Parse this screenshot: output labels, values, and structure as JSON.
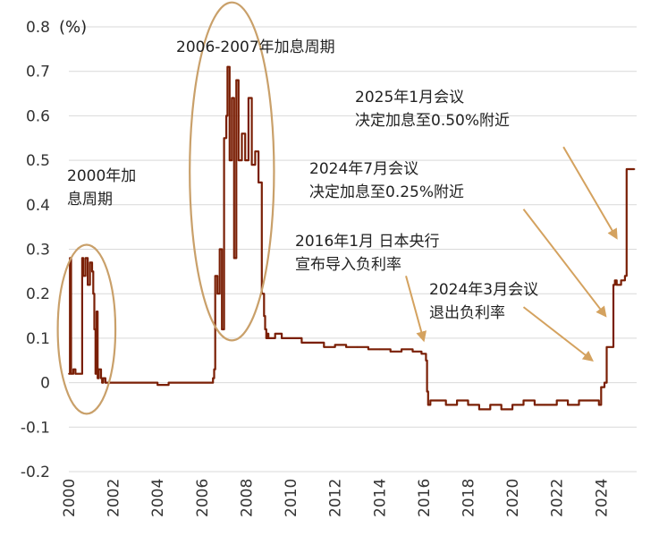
{
  "chart_data": {
    "type": "line",
    "title": "",
    "xlabel": "",
    "ylabel": "(%)",
    "xlim": [
      2000,
      2025.6
    ],
    "ylim": [
      -0.2,
      0.8
    ],
    "yticks": [
      "0.8",
      "0.7",
      "0.6",
      "0.5",
      "0.4",
      "0.3",
      "0.2",
      "0.1",
      "0",
      "-0.1",
      "-0.2"
    ],
    "xticks": [
      "2000",
      "2002",
      "2004",
      "2006",
      "2008",
      "2010",
      "2012",
      "2014",
      "2016",
      "2018",
      "2020",
      "2022",
      "2024"
    ],
    "grid": "horizontal",
    "series_color": "#7a1f05",
    "series": [
      {
        "x": [
          2000.0,
          2000.05,
          2000.1,
          2000.12,
          2000.2,
          2000.3,
          2000.5,
          2000.6,
          2000.65,
          2000.75,
          2000.85,
          2000.95,
          2001.05,
          2001.1,
          2001.15,
          2001.2,
          2001.25,
          2001.3,
          2001.35,
          2001.45,
          2001.5,
          2001.55,
          2001.65,
          2001.75,
          2002.0,
          2002.5,
          2003.0,
          2003.5,
          2004.0,
          2004.5,
          2005.0,
          2005.5,
          2006.0,
          2006.2,
          2006.3,
          2006.4,
          2006.5,
          2006.55,
          2006.6,
          2006.7,
          2006.8,
          2006.9,
          2007.0,
          2007.1,
          2007.15,
          2007.25,
          2007.35,
          2007.45,
          2007.55,
          2007.65,
          2007.8,
          2007.95,
          2008.1,
          2008.25,
          2008.4,
          2008.55,
          2008.7,
          2008.8,
          2008.85,
          2008.9,
          2008.95,
          2009.0,
          2009.3,
          2009.6,
          2010.0,
          2010.5,
          2011.0,
          2011.5,
          2012.0,
          2012.5,
          2013.0,
          2013.5,
          2014.0,
          2014.5,
          2015.0,
          2015.5,
          2015.9,
          2016.1,
          2016.15,
          2016.2,
          2016.3,
          2016.6,
          2017.0,
          2017.5,
          2018.0,
          2018.5,
          2019.0,
          2019.5,
          2020.0,
          2020.5,
          2021.0,
          2021.5,
          2022.0,
          2022.5,
          2023.0,
          2023.5,
          2023.9,
          2024.0,
          2024.15,
          2024.25,
          2024.35,
          2024.5,
          2024.55,
          2024.62,
          2024.7,
          2024.9,
          2025.0,
          2025.07,
          2025.15,
          2025.3,
          2025.5
        ],
        "values": [
          0.02,
          0.28,
          0.02,
          0.02,
          0.03,
          0.02,
          0.02,
          0.28,
          0.24,
          0.28,
          0.22,
          0.27,
          0.25,
          0.2,
          0.12,
          0.02,
          0.16,
          0.01,
          0.03,
          0.01,
          0.0,
          0.01,
          0.0,
          0.0,
          0.0,
          0.0,
          0.0,
          0.0,
          -0.005,
          0.0,
          0.0,
          0.0,
          0.0,
          0.0,
          0.0,
          0.0,
          0.01,
          0.03,
          0.24,
          0.2,
          0.3,
          0.12,
          0.55,
          0.6,
          0.71,
          0.5,
          0.64,
          0.28,
          0.68,
          0.5,
          0.56,
          0.5,
          0.64,
          0.49,
          0.52,
          0.45,
          0.2,
          0.15,
          0.12,
          0.1,
          0.11,
          0.1,
          0.11,
          0.1,
          0.1,
          0.09,
          0.09,
          0.08,
          0.085,
          0.08,
          0.08,
          0.075,
          0.075,
          0.07,
          0.075,
          0.07,
          0.065,
          0.05,
          -0.02,
          -0.05,
          -0.04,
          -0.04,
          -0.05,
          -0.04,
          -0.05,
          -0.06,
          -0.05,
          -0.06,
          -0.05,
          -0.04,
          -0.05,
          -0.05,
          -0.04,
          -0.05,
          -0.04,
          -0.04,
          -0.05,
          -0.01,
          0.0,
          0.08,
          0.08,
          0.08,
          0.22,
          0.23,
          0.22,
          0.23,
          0.23,
          0.24,
          0.48,
          0.48,
          0.48
        ]
      }
    ],
    "annotations": [
      {
        "lines": [
          "2000年加",
          "息周期"
        ]
      },
      {
        "lines": [
          "2006-2007年加息周期"
        ]
      },
      {
        "lines": [
          "2025年1月会议",
          "决定加息至0.50%附近"
        ]
      },
      {
        "lines": [
          "2024年7月会议",
          "决定加息至0.25%附近"
        ]
      },
      {
        "lines": [
          "2016年1月 日本央行",
          "宣布导入负利率"
        ]
      },
      {
        "lines": [
          "2024年3月会议",
          "退出负利率"
        ]
      }
    ],
    "ellipses": [
      {
        "cx": 2000.8,
        "cy": 0.12,
        "rx": 1.3,
        "ry": 0.19
      },
      {
        "cx": 2007.35,
        "cy": 0.475,
        "rx": 1.9,
        "ry": 0.38
      }
    ],
    "arrows": [
      {
        "from": [
          2022.3,
          0.53
        ],
        "to": [
          2024.7,
          0.325
        ]
      },
      {
        "from": [
          2020.5,
          0.39
        ],
        "to": [
          2024.2,
          0.15
        ]
      },
      {
        "from": [
          2015.2,
          0.24
        ],
        "to": [
          2016.0,
          0.095
        ]
      },
      {
        "from": [
          2020.5,
          0.17
        ],
        "to": [
          2023.6,
          0.05
        ]
      }
    ],
    "arrow_color": "#d4a25f",
    "ellipse_color": "#c9a06a"
  }
}
